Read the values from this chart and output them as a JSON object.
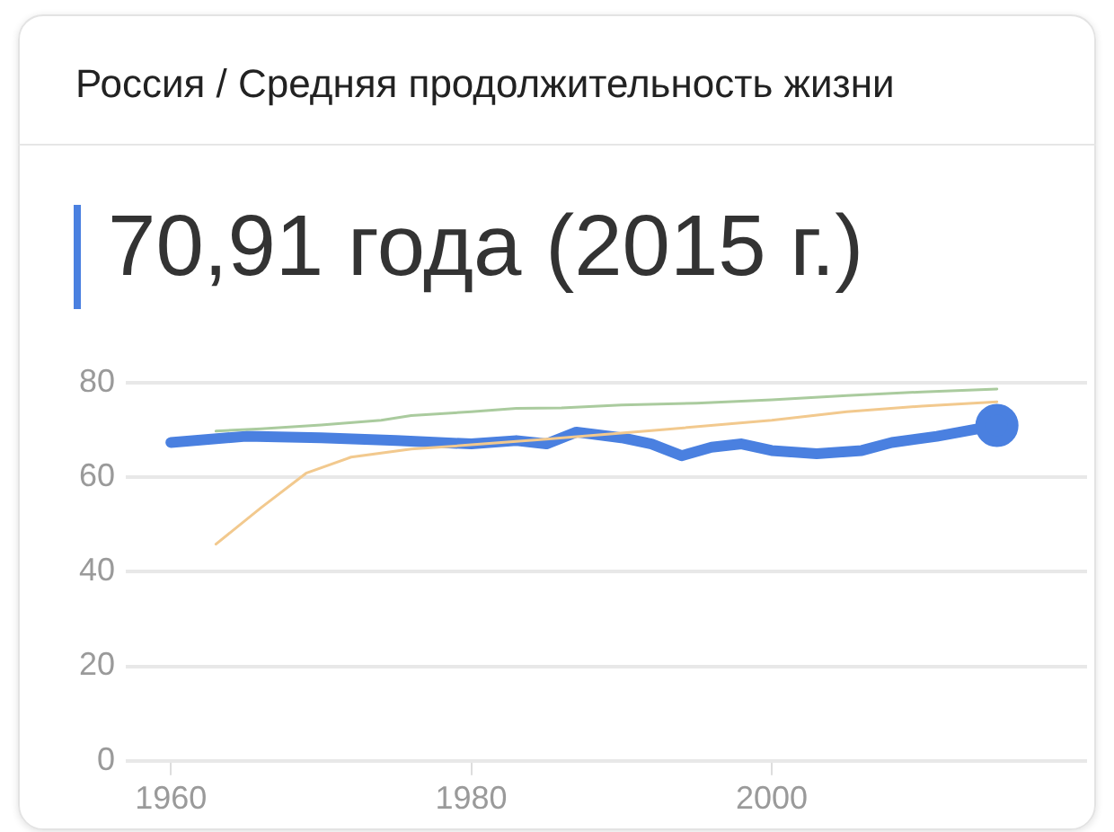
{
  "chart_data": {
    "type": "line",
    "title": "Россия / Средняя продолжительность жизни",
    "subtitle": "70,91 года (2015 г.)",
    "xlim": [
      1957,
      2021
    ],
    "xticks": [
      1960,
      1980,
      2000
    ],
    "ylim": [
      0,
      80
    ],
    "yticks": [
      0,
      20,
      40,
      60,
      80
    ],
    "grid": "y",
    "legend": false,
    "series": [
      {
        "color": "#aacb9e",
        "x": [
          1963,
          1966,
          1970,
          1974,
          1976,
          1980,
          1983,
          1986,
          1990,
          1995,
          2000,
          2005,
          2010,
          2015
        ],
        "values": [
          69.7,
          70.2,
          71.0,
          72.0,
          73.0,
          73.8,
          74.5,
          74.6,
          75.2,
          75.6,
          76.3,
          77.2,
          78.0,
          78.6
        ]
      },
      {
        "color": "#f2c98e",
        "x": [
          1963,
          1966,
          1969,
          1972,
          1976,
          1980,
          1985,
          1992,
          2000,
          2005,
          2010,
          2015
        ],
        "values": [
          45.8,
          53.5,
          60.8,
          64.2,
          65.9,
          66.8,
          68.0,
          69.8,
          72.0,
          73.8,
          75.0,
          75.9
        ]
      },
      {
        "color": "#4a80e0",
        "x": [
          1960,
          1965,
          1970,
          1975,
          1980,
          1983,
          1985,
          1987,
          1990,
          1992,
          1994,
          1996,
          1998,
          2000,
          2003,
          2006,
          2008,
          2011,
          2015
        ],
        "values": [
          67.3,
          68.6,
          68.3,
          67.7,
          67.0,
          67.7,
          67.0,
          69.5,
          68.3,
          67.0,
          64.5,
          66.3,
          67.0,
          65.6,
          64.9,
          65.6,
          67.3,
          68.6,
          70.91
        ]
      }
    ]
  }
}
